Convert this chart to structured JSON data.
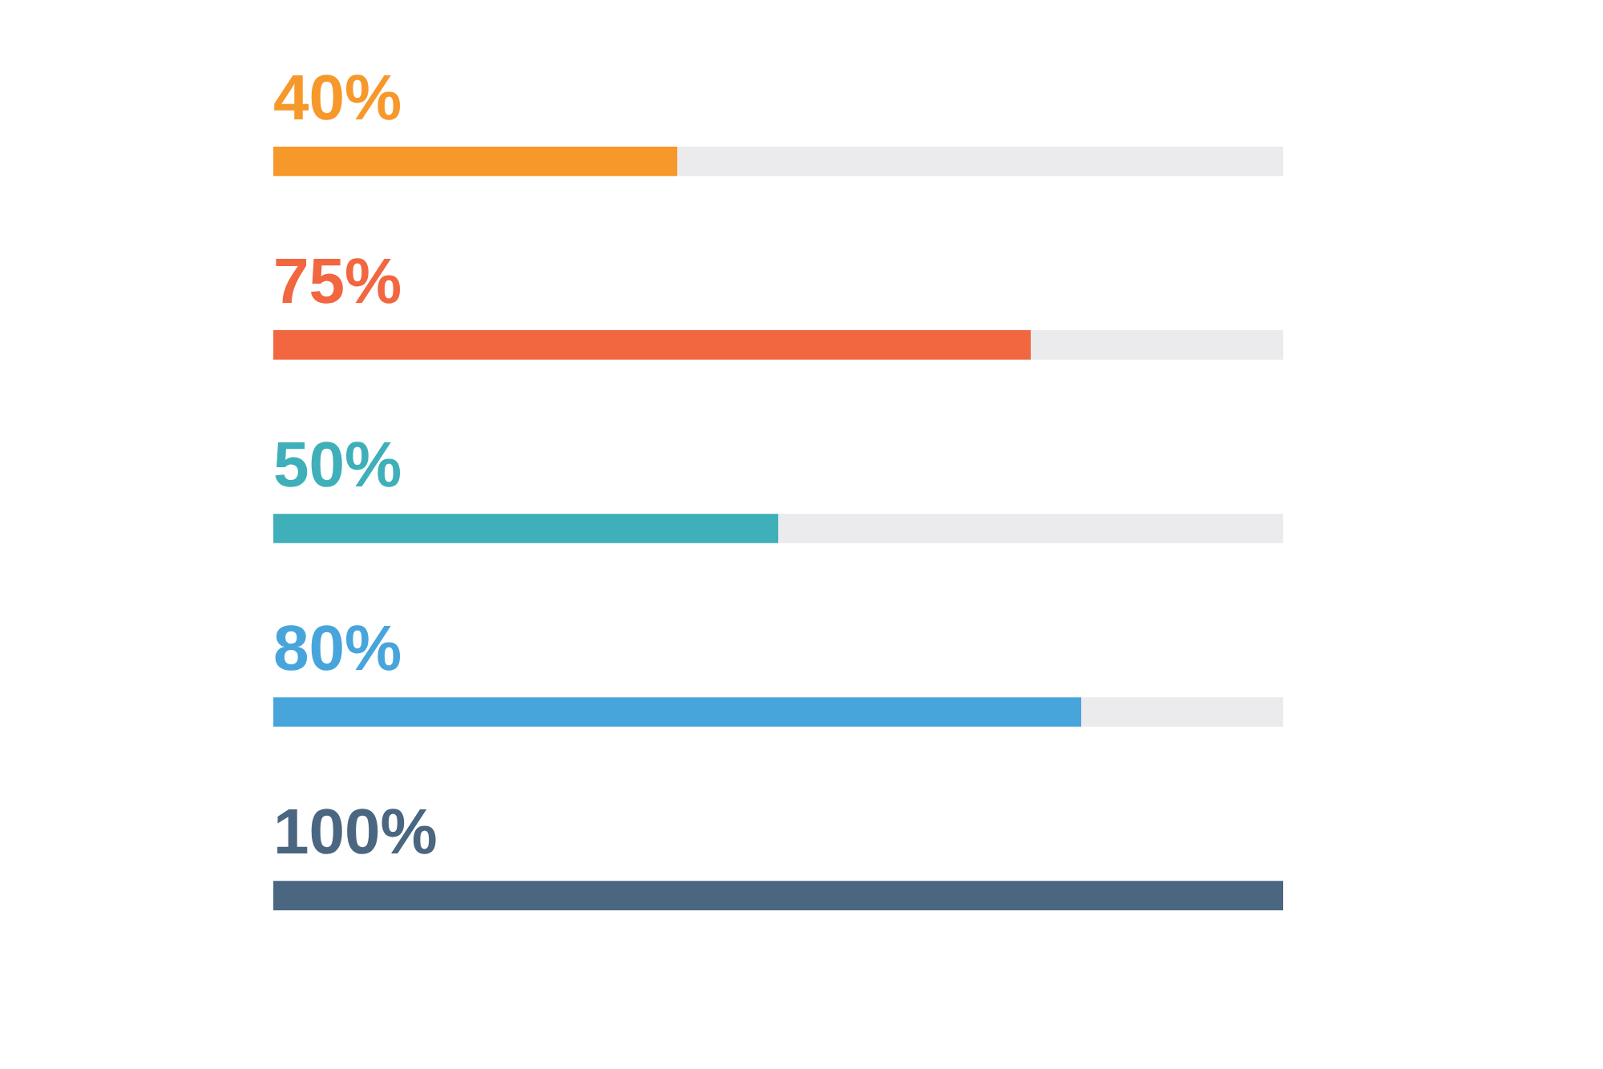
{
  "chart_data": {
    "type": "bar",
    "orientation": "horizontal",
    "stacked": true,
    "categories": [
      null,
      null,
      null,
      null,
      null
    ],
    "series": [
      {
        "colors": [
          "#f7982a",
          "#f26640",
          "#3fafb9",
          "#47a5dc",
          "#4a6680"
        ],
        "values": [
          40,
          75,
          50,
          80,
          100
        ],
        "value_labels": [
          "40%",
          "75%",
          "50%",
          "80%",
          "100%"
        ]
      },
      {
        "colors": [
          "#ebebed",
          "#ebebed",
          "#ebebed",
          "#ebebed",
          "#ebebed"
        ],
        "values": [
          60,
          25,
          50,
          20,
          0
        ]
      }
    ],
    "xlim": [
      0,
      100
    ],
    "tick_labels": false,
    "grid": false
  }
}
